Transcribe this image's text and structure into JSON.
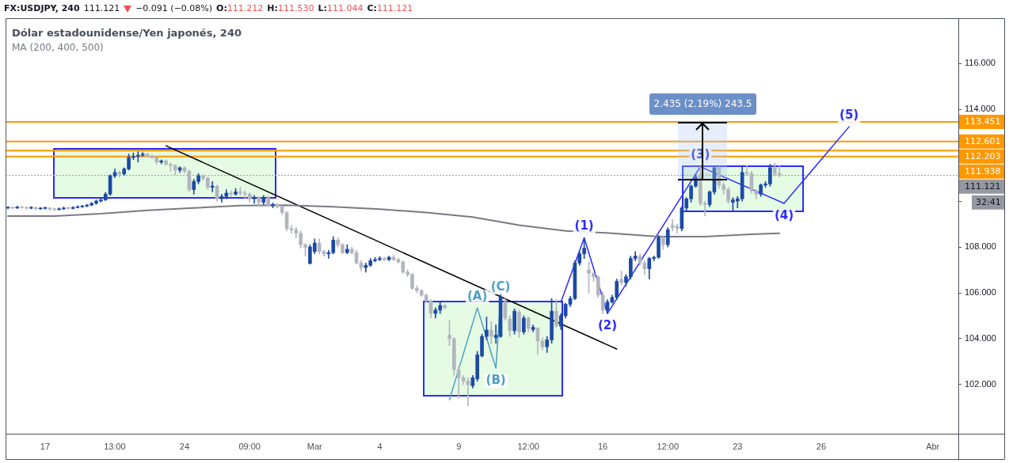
{
  "chart_data": {
    "type": "candlestick",
    "title": "Dólar estadounidense/Yen japonés, 240",
    "categories": [
      null,
      null,
      null,
      null,
      null,
      null,
      null,
      null,
      "17",
      null,
      null,
      null,
      null,
      null,
      null,
      null,
      null,
      null,
      null,
      null,
      null,
      null,
      null,
      "13:00",
      null,
      null,
      null,
      null,
      null,
      null,
      null,
      null,
      null,
      null,
      null,
      null,
      null,
      null,
      "24",
      null,
      null,
      null,
      null,
      null,
      null,
      null,
      null,
      null,
      null,
      null,
      null,
      null,
      "09:00",
      null,
      null,
      null,
      null,
      null,
      null,
      null,
      null,
      null,
      null,
      null,
      null,
      null,
      "Mar",
      null,
      null,
      null,
      null,
      null,
      null,
      null,
      null,
      null,
      null,
      null,
      null,
      null,
      "4",
      null,
      null,
      null,
      null,
      null,
      null,
      null,
      null,
      null,
      null,
      null,
      null,
      null,
      null,
      null,
      null,
      "9",
      null,
      null,
      null,
      null,
      null,
      null,
      null,
      null,
      null,
      null,
      null,
      null,
      null,
      null,
      "12:00",
      null,
      null,
      null,
      null,
      null,
      null,
      null,
      null,
      null,
      null,
      null,
      null,
      null,
      null,
      null,
      "16",
      null,
      null,
      null,
      null,
      null,
      null,
      null,
      null,
      null,
      null,
      null,
      null,
      null,
      "12:00",
      null,
      null,
      null,
      null,
      null,
      null,
      null,
      null,
      null,
      null,
      null,
      null,
      null,
      null,
      "23",
      null,
      null,
      null,
      null,
      null,
      null,
      null,
      null,
      null,
      null,
      null,
      null,
      null,
      null,
      null,
      null,
      null,
      "26",
      null,
      null,
      null,
      null,
      null,
      null,
      null,
      null,
      null,
      null,
      null,
      null,
      null,
      null,
      null,
      null,
      null,
      null,
      null,
      null,
      null,
      null,
      null,
      "Abr",
      null,
      null,
      null,
      null,
      null
    ],
    "ylim": [
      99.86,
      117.97
    ],
    "yticks": [
      {
        "value": 102,
        "label": "102.000"
      },
      {
        "value": 104,
        "label": "104.000"
      },
      {
        "value": 106,
        "label": "106.000"
      },
      {
        "value": 108,
        "label": "108.000"
      },
      {
        "value": 110,
        "label": null
      },
      {
        "value": 112,
        "label": null
      },
      {
        "value": 114,
        "label": "114.000"
      },
      {
        "value": 116,
        "label": "116.000"
      }
    ],
    "grid": false,
    "ref_lines": [
      {
        "axis": "y",
        "value": 113.451,
        "label": "113.451",
        "color": "#ff9800"
      },
      {
        "axis": "y",
        "value": 112.601,
        "label": "112.601",
        "color": "#ff9800"
      },
      {
        "axis": "y",
        "value": 112.203,
        "label": "112.203",
        "color": "#ff9800"
      },
      {
        "axis": "y",
        "value": 111.938,
        "label": "111.938",
        "color": "#ff9800"
      },
      {
        "axis": "y",
        "value": 111.121,
        "label": "111.121",
        "color": "#9598a1",
        "line_style": "dotted"
      }
    ],
    "annotations": [
      "FX:USDJPY, 240",
      "111.121",
      "−0.091 (−0.08%)",
      "O:111.212",
      "H:111.530",
      "L:111.044",
      "C:111.121",
      "2.435 (2.19%) 243.5",
      "32:41",
      {
        "text": "(1)",
        "y": 108.4
      },
      {
        "text": "(2)",
        "y": 105.1
      },
      {
        "text": "(3)",
        "y": 111.5
      },
      {
        "text": "(4)",
        "y": 109.9
      },
      {
        "text": "(5)",
        "y": 113.24
      },
      {
        "text": "(A)",
        "y": 105.34
      },
      {
        "text": "(B)",
        "y": 102.72
      },
      {
        "text": "(C)",
        "y": 105.76
      }
    ],
    "series": [
      {
        "colors": [
          "#1c4aa6",
          "#b2b5be",
          "#1c4aa6",
          "#b2b5be",
          "#b2b5be",
          "#1c4aa6",
          "#b2b5be",
          "#1c4aa6",
          "#1c4aa6",
          "#b2b5be",
          "#b2b5be",
          "#1c4aa6",
          "#1c4aa6",
          "#b2b5be",
          "#1c4aa6",
          "#1c4aa6",
          "#1c4aa6",
          "#1c4aa6",
          "#1c4aa6",
          "#1c4aa6",
          "#1c4aa6",
          "#1c4aa6",
          "#1c4aa6",
          "#1c4aa6",
          "#b2b5be",
          "#1c4aa6",
          "#1c4aa6",
          "#1c4aa6",
          "#1c4aa6",
          "#1c4aa6",
          "#b2b5be",
          "#b2b5be",
          "#b2b5be",
          "#1c4aa6",
          "#b2b5be",
          "#b2b5be",
          "#b2b5be",
          "#1c4aa6",
          "#b2b5be",
          "#b2b5be",
          "#1c4aa6",
          "#1c4aa6",
          "#b2b5be",
          "#b2b5be",
          "#1c4aa6",
          "#b2b5be",
          "#1c4aa6",
          "#1c4aa6",
          "#b2b5be",
          "#1c4aa6",
          "#b2b5be",
          "#b2b5be",
          "#b2b5be",
          "#1c4aa6",
          "#b2b5be",
          "#1c4aa6",
          "#b2b5be",
          "#1c4aa6",
          "#b2b5be",
          "#b2b5be",
          "#b2b5be",
          "#b2b5be",
          "#b2b5be",
          "#b2b5be",
          "#b2b5be",
          "#1c4aa6",
          "#1c4aa6",
          "#b2b5be",
          "#b2b5be",
          "#1c4aa6",
          "#1c4aa6",
          "#b2b5be",
          "#b2b5be",
          "#1c4aa6",
          "#b2b5be",
          "#b2b5be",
          "#b2b5be",
          "#1c4aa6",
          "#1c4aa6",
          "#1c4aa6",
          "#1c4aa6",
          "#b2b5be",
          "#1c4aa6",
          "#b2b5be",
          "#b2b5be",
          "#b2b5be",
          "#b2b5be",
          "#b2b5be",
          "#b2b5be",
          "#b2b5be",
          "#b2b5be",
          "#b2b5be",
          "#1c4aa6",
          "#1c4aa6",
          "#b2b5be",
          "#b2b5be",
          "#b2b5be",
          "#b2b5be",
          "#b2b5be",
          "#b2b5be",
          "#1c4aa6",
          "#1c4aa6",
          "#1c4aa6",
          "#1c4aa6",
          "#b2b5be",
          "#1c4aa6",
          "#1c4aa6",
          "#b2b5be",
          "#b2b5be",
          "#1c4aa6",
          "#b2b5be",
          "#1c4aa6",
          "#b2b5be",
          "#1c4aa6",
          "#b2b5be",
          "#b2b5be",
          "#1c4aa6",
          "#1c4aa6",
          "#b2b5be",
          "#1c4aa6",
          "#1c4aa6",
          "#1c4aa6",
          "#1c4aa6",
          "#1c4aa6",
          "#1c4aa6",
          "#b2b5be",
          "#b2b5be",
          "#b2b5be",
          "#b2b5be",
          "#1c4aa6",
          "#1c4aa6",
          "#1c4aa6",
          "#b2b5be",
          "#1c4aa6",
          "#1c4aa6",
          "#1c4aa6",
          "#b2b5be",
          "#b2b5be",
          "#1c4aa6",
          "#1c4aa6",
          "#1c4aa6",
          "#b2b5be",
          "#1c4aa6",
          "#b2b5be",
          "#b2b5be",
          "#1c4aa6",
          "#1c4aa6",
          "#1c4aa6",
          "#1c4aa6",
          "#b2b5be",
          "#b2b5be",
          "#1c4aa6",
          "#1c4aa6",
          "#b2b5be",
          "#b2b5be",
          "#b2b5be",
          "#1c4aa6",
          "#1c4aa6",
          "#1c4aa6",
          "#b2b5be",
          "#b2b5be",
          "#b2b5be",
          "#1c4aa6",
          "#1c4aa6",
          "#1c4aa6",
          "#b2b5be",
          "#b2b5be",
          null,
          null,
          null,
          null,
          null,
          null,
          null,
          null,
          null,
          null,
          null,
          null,
          null,
          null,
          null,
          null,
          null,
          null,
          null,
          null,
          null,
          null,
          null,
          null,
          null,
          null,
          null,
          null,
          null,
          null,
          null,
          null,
          null,
          null,
          null,
          null,
          null,
          null
        ],
        "ohlc": [
          [
            109.7,
            109.76,
            109.66,
            109.72
          ],
          [
            109.72,
            109.75,
            109.66,
            109.7
          ],
          [
            109.7,
            109.78,
            109.67,
            109.74
          ],
          [
            109.74,
            109.77,
            109.68,
            109.71
          ],
          [
            109.71,
            109.74,
            109.65,
            109.69
          ],
          [
            109.69,
            109.76,
            109.66,
            109.72
          ],
          [
            109.72,
            109.74,
            109.62,
            109.66
          ],
          [
            109.66,
            109.72,
            109.63,
            109.68
          ],
          [
            109.68,
            109.74,
            109.65,
            109.7
          ],
          [
            109.7,
            109.72,
            109.6,
            109.65
          ],
          [
            109.65,
            109.7,
            109.58,
            109.63
          ],
          [
            109.63,
            109.7,
            109.6,
            109.66
          ],
          [
            109.66,
            109.74,
            109.63,
            109.7
          ],
          [
            109.7,
            109.73,
            109.64,
            109.68
          ],
          [
            109.68,
            109.76,
            109.65,
            109.72
          ],
          [
            109.72,
            109.79,
            109.69,
            109.75
          ],
          [
            109.75,
            109.82,
            109.72,
            109.78
          ],
          [
            109.78,
            109.86,
            109.75,
            109.82
          ],
          [
            109.82,
            109.94,
            109.8,
            109.9
          ],
          [
            109.9,
            110.05,
            109.86,
            110.0
          ],
          [
            110.0,
            110.12,
            109.96,
            110.05
          ],
          [
            110.05,
            110.38,
            110.02,
            110.3
          ],
          [
            110.3,
            111.15,
            110.25,
            111.1
          ],
          [
            111.1,
            111.4,
            111.02,
            111.25
          ],
          [
            111.25,
            111.32,
            111.05,
            111.18
          ],
          [
            111.18,
            111.45,
            111.12,
            111.4
          ],
          [
            111.4,
            112.05,
            111.35,
            111.9
          ],
          [
            111.9,
            112.1,
            111.8,
            111.95
          ],
          [
            111.95,
            112.15,
            111.7,
            112.0
          ],
          [
            112.0,
            112.12,
            111.95,
            112.05
          ],
          [
            112.05,
            112.08,
            111.9,
            111.95
          ],
          [
            111.95,
            112.02,
            111.85,
            111.9
          ],
          [
            111.9,
            111.95,
            111.6,
            111.7
          ],
          [
            111.7,
            111.8,
            111.62,
            111.75
          ],
          [
            111.75,
            111.8,
            111.55,
            111.6
          ],
          [
            111.6,
            111.66,
            111.3,
            111.55
          ],
          [
            111.55,
            111.6,
            111.15,
            111.35
          ],
          [
            111.35,
            111.5,
            111.25,
            111.45
          ],
          [
            111.45,
            111.5,
            111.2,
            111.3
          ],
          [
            111.3,
            111.35,
            110.4,
            110.5
          ],
          [
            110.5,
            110.95,
            110.3,
            110.85
          ],
          [
            110.85,
            111.2,
            110.75,
            111.1
          ],
          [
            111.1,
            111.15,
            110.9,
            111.0
          ],
          [
            111.0,
            111.05,
            110.5,
            110.6
          ],
          [
            110.6,
            110.85,
            110.4,
            110.65
          ],
          [
            110.65,
            110.7,
            110.0,
            110.1
          ],
          [
            110.1,
            110.3,
            109.95,
            110.2
          ],
          [
            110.2,
            110.5,
            110.1,
            110.35
          ],
          [
            110.35,
            110.45,
            110.2,
            110.3
          ],
          [
            110.3,
            110.55,
            110.25,
            110.4
          ],
          [
            110.4,
            110.6,
            110.25,
            110.35
          ],
          [
            110.35,
            110.45,
            110.1,
            110.3
          ],
          [
            110.3,
            110.35,
            109.95,
            110.1
          ],
          [
            110.1,
            110.25,
            109.9,
            110.15
          ],
          [
            110.15,
            110.2,
            109.75,
            109.95
          ],
          [
            109.95,
            110.25,
            109.85,
            110.15
          ],
          [
            110.15,
            110.22,
            109.75,
            109.8
          ],
          [
            109.8,
            109.92,
            109.7,
            109.85
          ],
          [
            109.85,
            109.9,
            109.7,
            109.75
          ],
          [
            109.75,
            109.8,
            109.4,
            109.5
          ],
          [
            109.5,
            109.55,
            108.7,
            108.8
          ],
          [
            108.8,
            108.95,
            108.6,
            108.75
          ],
          [
            108.75,
            108.85,
            108.4,
            108.6
          ],
          [
            108.6,
            108.7,
            107.95,
            108.1
          ],
          [
            108.1,
            108.15,
            107.6,
            107.98
          ],
          [
            107.28,
            108.1,
            107.25,
            108.0
          ],
          [
            107.8,
            108.35,
            107.7,
            108.17
          ],
          [
            108.17,
            108.35,
            107.7,
            107.8
          ],
          [
            107.8,
            107.85,
            107.6,
            107.7
          ],
          [
            107.7,
            107.85,
            107.5,
            107.75
          ],
          [
            107.75,
            108.45,
            107.7,
            108.3
          ],
          [
            108.3,
            108.4,
            108.0,
            108.1
          ],
          [
            108.1,
            108.15,
            107.7,
            107.75
          ],
          [
            107.75,
            108.1,
            107.7,
            107.9
          ],
          [
            107.9,
            108.0,
            107.7,
            107.75
          ],
          [
            107.75,
            107.85,
            107.25,
            107.3
          ],
          [
            107.3,
            107.4,
            106.95,
            107.1
          ],
          [
            107.1,
            107.3,
            106.9,
            107.2
          ],
          [
            107.2,
            107.5,
            107.15,
            107.4
          ],
          [
            107.4,
            107.55,
            107.35,
            107.45
          ],
          [
            107.45,
            107.58,
            107.4,
            107.5
          ],
          [
            107.5,
            107.55,
            107.4,
            107.45
          ],
          [
            107.45,
            107.6,
            107.4,
            107.55
          ],
          [
            107.55,
            107.65,
            107.4,
            107.45
          ],
          [
            107.45,
            107.5,
            107.3,
            107.35
          ],
          [
            107.35,
            107.4,
            106.85,
            106.9
          ],
          [
            106.9,
            107.0,
            106.7,
            106.8
          ],
          [
            106.8,
            106.85,
            106.15,
            106.2
          ],
          [
            106.2,
            106.3,
            106.0,
            106.1
          ],
          [
            106.1,
            106.15,
            105.85,
            105.9
          ],
          [
            105.9,
            105.95,
            105.6,
            105.65
          ],
          [
            105.65,
            105.7,
            104.9,
            105.1
          ],
          [
            105.1,
            105.35,
            104.9,
            105.25
          ],
          [
            105.25,
            105.6,
            105.1,
            105.45
          ],
          [
            105.45,
            105.5,
            105.3,
            105.35
          ],
          [
            104.15,
            104.8,
            103.7,
            104.0
          ],
          [
            104.0,
            104.05,
            102.4,
            102.65
          ],
          [
            102.65,
            102.8,
            101.4,
            102.3
          ],
          [
            102.3,
            102.4,
            102.0,
            102.15
          ],
          [
            102.15,
            102.3,
            101.07,
            102.0
          ],
          [
            101.95,
            102.4,
            101.85,
            102.3
          ],
          [
            102.25,
            103.45,
            102.15,
            103.3
          ],
          [
            103.25,
            104.2,
            103.2,
            104.1
          ],
          [
            104.1,
            104.95,
            103.95,
            104.38
          ],
          [
            104.38,
            104.75,
            103.8,
            104.1
          ],
          [
            104.05,
            104.6,
            103.8,
            104.15
          ],
          [
            104.1,
            106.0,
            104.05,
            105.83
          ],
          [
            105.6,
            105.8,
            104.8,
            104.9
          ],
          [
            104.86,
            105.0,
            104.1,
            104.35
          ],
          [
            104.35,
            105.3,
            104.2,
            105.2
          ],
          [
            105.15,
            105.25,
            104.05,
            104.3
          ],
          [
            104.3,
            105.0,
            104.2,
            104.9
          ],
          [
            104.9,
            104.95,
            104.3,
            104.45
          ],
          [
            104.4,
            104.6,
            104.3,
            104.5
          ],
          [
            104.45,
            104.5,
            103.3,
            103.9
          ],
          [
            103.9,
            104.05,
            103.5,
            103.65
          ],
          [
            103.65,
            104.1,
            103.4,
            103.95
          ],
          [
            103.95,
            105.75,
            103.8,
            105.2
          ],
          [
            105.2,
            105.7,
            104.5,
            104.55
          ],
          [
            104.55,
            105.1,
            104.4,
            105.0
          ],
          [
            105.0,
            105.55,
            104.9,
            105.5
          ],
          [
            105.5,
            105.85,
            105.4,
            105.75
          ],
          [
            105.75,
            107.4,
            105.7,
            107.3
          ],
          [
            107.3,
            107.8,
            107.2,
            107.7
          ],
          [
            107.7,
            108.4,
            107.5,
            107.95
          ],
          [
            107.0,
            107.35,
            106.0,
            106.85
          ],
          [
            106.85,
            106.9,
            106.5,
            106.7
          ],
          [
            106.7,
            106.75,
            105.8,
            105.9
          ],
          [
            105.9,
            106.05,
            105.1,
            105.25
          ],
          [
            105.25,
            105.7,
            105.1,
            105.6
          ],
          [
            105.6,
            105.9,
            105.55,
            105.8
          ],
          [
            105.8,
            106.6,
            105.7,
            106.5
          ],
          [
            106.6,
            106.95,
            106.35,
            106.45
          ],
          [
            106.45,
            106.8,
            106.3,
            106.7
          ],
          [
            106.7,
            107.6,
            106.6,
            107.5
          ],
          [
            107.5,
            107.8,
            107.4,
            107.6
          ],
          [
            107.6,
            107.7,
            107.2,
            107.3
          ],
          [
            107.3,
            107.4,
            106.8,
            107.05
          ],
          [
            107.05,
            107.55,
            106.6,
            107.5
          ],
          [
            107.5,
            107.6,
            107.4,
            107.55
          ],
          [
            107.55,
            108.5,
            107.5,
            108.4
          ],
          [
            108.4,
            108.5,
            107.9,
            108.1
          ],
          [
            108.1,
            108.85,
            108.0,
            108.75
          ],
          [
            108.95,
            109.2,
            108.7,
            108.85
          ],
          [
            108.9,
            109.0,
            108.6,
            108.8
          ],
          [
            108.8,
            109.75,
            108.7,
            109.7
          ],
          [
            109.7,
            110.15,
            109.6,
            110.1
          ],
          [
            110.1,
            110.7,
            109.95,
            110.65
          ],
          [
            110.65,
            111.2,
            110.6,
            111.05
          ],
          [
            111.15,
            111.5,
            109.8,
            109.9
          ],
          [
            109.9,
            110.0,
            109.35,
            109.85
          ],
          [
            109.85,
            110.45,
            109.75,
            110.4
          ],
          [
            110.4,
            111.5,
            110.3,
            111.45
          ],
          [
            111.45,
            111.5,
            110.55,
            110.7
          ],
          [
            110.7,
            110.8,
            110.3,
            110.5
          ],
          [
            110.5,
            110.6,
            109.9,
            110.0
          ],
          [
            109.95,
            110.15,
            109.6,
            110.05
          ],
          [
            110.0,
            110.2,
            109.7,
            110.1
          ],
          [
            110.1,
            111.55,
            110.0,
            111.25
          ],
          [
            111.25,
            111.55,
            111.1,
            111.2
          ],
          [
            111.2,
            111.3,
            110.35,
            110.45
          ],
          [
            110.45,
            110.5,
            110.1,
            110.3
          ],
          [
            110.3,
            110.75,
            110.2,
            110.7
          ],
          [
            110.7,
            110.85,
            110.6,
            110.75
          ],
          [
            110.75,
            111.6,
            110.65,
            111.45
          ],
          [
            111.45,
            111.65,
            111.1,
            111.2
          ],
          [
            111.212,
            111.53,
            111.044,
            111.121
          ],
          null,
          null,
          null,
          null,
          null,
          null,
          null,
          null,
          null,
          null,
          null,
          null,
          null,
          null,
          null,
          null,
          null,
          null,
          null,
          null,
          null,
          null,
          null,
          null,
          null,
          null,
          null,
          null,
          null,
          null,
          null,
          null,
          null,
          null,
          null,
          null,
          null,
          null
        ]
      },
      {
        "type": "line",
        "name": "MA (200, 400, 500)",
        "color": "#787b86",
        "values": [
          109.35,
          null,
          null,
          null,
          null,
          null,
          null,
          null,
          null,
          null,
          109.35,
          null,
          null,
          null,
          null,
          null,
          null,
          null,
          null,
          null,
          109.45,
          null,
          null,
          null,
          null,
          null,
          null,
          null,
          null,
          null,
          109.6,
          null,
          null,
          null,
          null,
          null,
          null,
          null,
          null,
          null,
          109.7,
          null,
          null,
          null,
          null,
          null,
          null,
          null,
          null,
          null,
          109.8,
          null,
          null,
          null,
          null,
          null,
          null,
          null,
          null,
          null,
          109.82,
          null,
          null,
          null,
          null,
          null,
          null,
          null,
          null,
          null,
          109.75,
          null,
          null,
          null,
          null,
          null,
          null,
          null,
          null,
          null,
          109.65,
          null,
          null,
          null,
          null,
          null,
          null,
          null,
          null,
          null,
          109.5,
          null,
          null,
          null,
          null,
          null,
          null,
          null,
          null,
          null,
          109.3,
          null,
          null,
          null,
          null,
          null,
          null,
          null,
          null,
          null,
          108.95,
          null,
          null,
          null,
          null,
          null,
          null,
          null,
          null,
          null,
          108.7,
          null,
          null,
          null,
          null,
          null,
          null,
          null,
          null,
          null,
          108.6,
          null,
          null,
          null,
          null,
          null,
          null,
          null,
          null,
          null,
          108.45,
          null,
          null,
          null,
          null,
          null,
          null,
          null,
          null,
          null,
          108.45,
          null,
          null,
          null,
          null,
          null,
          null,
          null,
          null,
          null,
          108.55,
          null,
          null,
          null,
          null,
          null,
          108.6,
          null,
          null,
          null,
          null,
          null,
          null,
          null,
          null,
          null,
          null,
          null,
          null,
          null,
          null,
          null,
          null,
          null,
          null,
          null,
          null,
          null,
          null,
          null,
          null,
          null,
          null,
          null,
          null,
          null,
          null,
          null,
          null,
          null,
          null,
          null,
          null,
          null,
          null
        ]
      },
      {
        "type": "line",
        "color": "#000000",
        "values": [
          null,
          null,
          null,
          null,
          null,
          null,
          null,
          null,
          null,
          null,
          null,
          null,
          null,
          null,
          null,
          null,
          null,
          null,
          null,
          null,
          null,
          null,
          null,
          null,
          null,
          null,
          null,
          null,
          null,
          null,
          null,
          null,
          null,
          null,
          112.41,
          null,
          null,
          null,
          null,
          null,
          null,
          null,
          null,
          null,
          null,
          null,
          null,
          null,
          null,
          null,
          null,
          null,
          null,
          null,
          null,
          null,
          null,
          null,
          null,
          null,
          null,
          null,
          null,
          null,
          null,
          null,
          null,
          null,
          null,
          null,
          null,
          null,
          null,
          null,
          null,
          null,
          null,
          null,
          null,
          null,
          null,
          null,
          null,
          null,
          null,
          null,
          null,
          null,
          null,
          null,
          null,
          null,
          null,
          null,
          null,
          null,
          null,
          null,
          null,
          null,
          null,
          null,
          null,
          null,
          null,
          null,
          null,
          null,
          null,
          null,
          null,
          null,
          null,
          null,
          null,
          null,
          null,
          null,
          null,
          null,
          null,
          null,
          null,
          null,
          null,
          null,
          null,
          null,
          null,
          null,
          null,
          103.55,
          null,
          null,
          null,
          null,
          null,
          null,
          null,
          null,
          null,
          null,
          null,
          null,
          null,
          null,
          null,
          null,
          null,
          null,
          null,
          null,
          null,
          null,
          null,
          null,
          null,
          null,
          null,
          null,
          null,
          null,
          null,
          null,
          null,
          null,
          null,
          null,
          null,
          null,
          null,
          null,
          null,
          null,
          null,
          null,
          null,
          null,
          null,
          null,
          null,
          null,
          null,
          null,
          null,
          null,
          null,
          null,
          null,
          null,
          null,
          null,
          null,
          null,
          null,
          null,
          null,
          null,
          null,
          null,
          null,
          null,
          null,
          null,
          null
        ]
      },
      {
        "type": "line",
        "color": "#2b2bff",
        "values": [
          null,
          null,
          null,
          null,
          null,
          null,
          null,
          null,
          null,
          null,
          null,
          null,
          null,
          null,
          null,
          null,
          null,
          null,
          null,
          null,
          null,
          null,
          null,
          null,
          null,
          null,
          null,
          null,
          null,
          null,
          null,
          null,
          null,
          null,
          null,
          null,
          null,
          null,
          null,
          null,
          null,
          null,
          null,
          null,
          null,
          null,
          null,
          null,
          null,
          null,
          null,
          null,
          null,
          null,
          null,
          null,
          null,
          null,
          null,
          null,
          null,
          null,
          null,
          null,
          null,
          null,
          null,
          null,
          null,
          null,
          null,
          null,
          null,
          null,
          null,
          null,
          null,
          null,
          null,
          null,
          null,
          null,
          null,
          null,
          null,
          null,
          null,
          null,
          null,
          null,
          null,
          null,
          null,
          null,
          null,
          null,
          null,
          null,
          null,
          null,
          null,
          null,
          null,
          null,
          null,
          null,
          null,
          null,
          null,
          null,
          null,
          null,
          null,
          null,
          null,
          null,
          null,
          null,
          null,
          105.6,
          null,
          null,
          null,
          null,
          108.4,
          null,
          null,
          null,
          null,
          105.1,
          null,
          null,
          null,
          null,
          null,
          null,
          null,
          null,
          null,
          null,
          null,
          null,
          null,
          null,
          null,
          null,
          null,
          null,
          null,
          111.5,
          null,
          null,
          null,
          null,
          null,
          null,
          null,
          null,
          null,
          null,
          null,
          null,
          null,
          null,
          null,
          null,
          null,
          109.9,
          null,
          null,
          null,
          null,
          null,
          null,
          null,
          null,
          null,
          null,
          null,
          null,
          null,
          113.24,
          null,
          null,
          null,
          null,
          null,
          null,
          null,
          null,
          null,
          null,
          null,
          null,
          null,
          null,
          null,
          null,
          null,
          null,
          null,
          null,
          null,
          null,
          null
        ]
      },
      {
        "type": "line",
        "color": "#4a9fc4",
        "values": [
          null,
          null,
          null,
          null,
          null,
          null,
          null,
          null,
          null,
          null,
          null,
          null,
          null,
          null,
          null,
          null,
          null,
          null,
          null,
          null,
          null,
          null,
          null,
          null,
          null,
          null,
          null,
          null,
          null,
          null,
          null,
          null,
          null,
          null,
          null,
          null,
          null,
          null,
          null,
          null,
          null,
          null,
          null,
          null,
          null,
          null,
          null,
          null,
          null,
          null,
          null,
          null,
          null,
          null,
          null,
          null,
          null,
          null,
          null,
          null,
          null,
          null,
          null,
          null,
          null,
          null,
          null,
          null,
          null,
          null,
          null,
          null,
          null,
          null,
          null,
          null,
          null,
          null,
          null,
          null,
          null,
          null,
          null,
          null,
          null,
          null,
          null,
          null,
          null,
          null,
          null,
          null,
          null,
          null,
          null,
          101.34,
          null,
          null,
          null,
          null,
          null,
          105.34,
          null,
          null,
          null,
          102.72,
          105.76,
          null,
          null,
          null,
          null,
          null,
          null,
          null,
          null,
          null,
          null,
          null,
          null,
          null,
          null,
          null,
          null,
          null,
          null,
          null,
          null,
          null,
          null,
          null,
          null,
          null,
          null,
          null,
          null,
          null,
          null,
          null,
          null,
          null,
          null,
          null,
          null,
          null,
          null,
          null,
          null,
          null,
          null,
          null,
          null,
          null,
          null,
          null,
          null,
          null,
          null,
          null,
          null,
          null,
          null,
          null,
          null,
          null,
          null,
          null,
          null,
          null,
          null,
          null,
          null,
          null,
          null,
          null,
          null,
          null,
          null,
          null,
          null,
          null,
          null,
          null,
          null,
          null,
          null,
          null,
          null,
          null,
          null,
          null,
          null,
          null,
          null,
          null,
          null,
          null,
          null,
          null,
          null,
          null,
          null,
          null,
          null,
          null,
          null
        ]
      }
    ]
  }
}
